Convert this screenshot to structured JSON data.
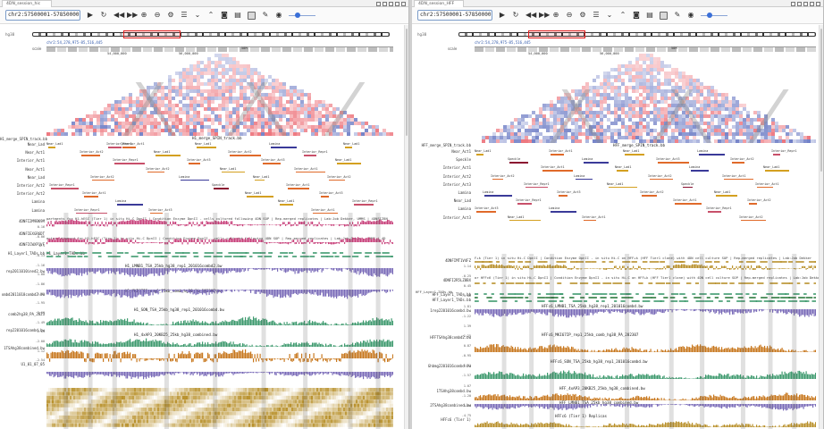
{
  "colors": {
    "hic_red": "#e8505a",
    "hic_blue": "#4c5fb8",
    "lamina": "#3a3a99",
    "speckle": "#8b1030",
    "near_lad": "#d4a020",
    "interior_act": "#e06a2a",
    "interior_repr": "#c8506a",
    "wig_purple": "#7a6bb8",
    "wig_green": "#3e9a6e",
    "wig_orange": "#c8781e",
    "wig_gold": "#b8902a",
    "wig_magenta": "#c8407a"
  },
  "left": {
    "tab_title": "4DN_session_hic",
    "locus": "chr2:57500001-57850000,chr2:",
    "chrom_label": "hg38",
    "coord_line": "chr2:54,278,975-85,516,445",
    "scale_label": "scale",
    "ruler_ticks": [
      "54,000,000",
      "56,000,000",
      "58M"
    ],
    "spin_title": "H1_merge_SPIN_track.bb",
    "spin_header_label": "H1_merge_SPIN_track.bb",
    "spin_rows": [
      {
        "label": "Near_Lad",
        "feat": [
          "Near_Lad1",
          "Interior_Act1",
          "Near_Lad1",
          "Lamina",
          "Near_Lad1",
          "Interior_Repr1"
        ]
      },
      {
        "label": "Near_Act1",
        "feat": [
          "Interior_Act2",
          "Near_Lad1",
          "Interior_Act2",
          "Interior_Repr1"
        ]
      },
      {
        "label": "Interior_Act1",
        "feat": [
          "Interior_Repr1",
          "Interior_Act3",
          "Interior_Act3",
          "Near_Lad1"
        ]
      },
      {
        "label": "Near_Act1",
        "feat": [
          "Interior_Act2",
          "Near_Lad1",
          "Interior_Act1"
        ]
      },
      {
        "label": "Near_Lad",
        "feat": [
          "Lamina",
          "Near_Lad1",
          "Interior_Act2",
          "Interior_Act2"
        ]
      },
      {
        "label": "Interior_Act2",
        "feat": [
          "Speckle",
          "Interior_Act1",
          "Interior_Repr1"
        ]
      },
      {
        "label": "Interior_Act2",
        "feat": [
          "Near_Lad1",
          "Interior_Act3",
          "Interior_Act1"
        ]
      },
      {
        "label": "Lamina",
        "feat": [
          "Near_Lad1",
          "Interior_Repr1",
          "Lamina"
        ]
      },
      {
        "label": "Lamina",
        "feat": [
          "Interior_Act1",
          "Interior_Repr1",
          "Interior_Act3"
        ]
      }
    ],
    "track_titles": [
      "partments for H1-hESC (Tier 1) in situ Hi-C DpnII | Condition Enzyme DpnII - cells cultured following 4DN SOP | Rep-merged replicates | Lab:Job Dekker, UMMS | 4DNFIZ8N",
      "ecture diamond for H1-hESC (Tier 1) in situ Hi-C DpnII | Condition Enzyme DpnII - cells cultured following 4DN SOP | Rep-merged replicates | Lab:Job Dekker, UMMS | 4D",
      "H1_Layer1_TADs.bb",
      "H1_LMNB1_TSA_25kb_hg38_rep1_201016combd2.bw",
      "H1_MKI67IP_rep1_25kb_comb_hg38_PA_282307.bw",
      "H1_SON_TSA_25kb_hg38_rep1_201016combd.bw",
      "H1_4xAP3_20KB25_25kb_hg38_combined.bw"
    ],
    "side_labels": [
      "4DNFI2M9BK9M",
      "4DNFIEXGR6DT",
      "4DNFICWXP1VF",
      "H1_Layer1_TADs.bb",
      "rep2011010ined2.bw",
      "ombd2011018combd2.bw",
      "comb2hg38_PA_2823",
      "rep2201016combd.bw",
      "1TSAhg38combined.bw",
      "U1_01_07_05"
    ],
    "scales": [
      "0.16",
      "-0.06",
      "0.1",
      "-0.13",
      "-1.16",
      "1.80",
      "-1.86",
      "1.89",
      "-1.95",
      "2.00",
      "-1.49",
      "2.65",
      "-2.00",
      "1.12",
      "-2.54"
    ]
  },
  "right": {
    "tab_title": "4DN_session_HFF",
    "locus": "chr2:57500001-57850000,chr2:",
    "chrom_label": "hg38",
    "coord_line": "chr2:54,278,975-85,516,445",
    "scale_label": "scale",
    "ruler_ticks": [
      "54,000,000",
      "56,000,000",
      "58M"
    ],
    "spin_title": "HFF_merge_SPIN_track.bb",
    "spin_header_label": "HFF_merge_SPIN_track.bb",
    "spin_rows": [
      {
        "label": "Near_Act1",
        "feat": [
          "Near_Lad1",
          "Interior_Act1",
          "Near_Lad1",
          "Lamina",
          "Interior_Repr1"
        ]
      },
      {
        "label": "Speckle",
        "feat": [
          "Speckle",
          "Lamina",
          "Interior_Act3",
          "Interior_Act2"
        ]
      },
      {
        "label": "Interior_Act1",
        "feat": [
          "Interior_Act1",
          "Near_Lad1",
          "Lamina",
          "Near_Lad1"
        ]
      },
      {
        "label": "Interior_Act2",
        "feat": [
          "Lamina",
          "Interior_Act2",
          "Interior_Act1",
          "Interior_Act2"
        ]
      },
      {
        "label": "Interior_Act3",
        "feat": [
          "Near_Lad1",
          "Speckle",
          "Interior_Act1",
          "Interior_Repr1"
        ]
      },
      {
        "label": "Lamina",
        "feat": [
          "Interior_Act2",
          "Near_Lad1",
          "Lamina",
          "Interior_Act3"
        ]
      },
      {
        "label": "Near_Lad",
        "feat": [
          "Interior_Act1",
          "Interior_Act2",
          "Interior_Repr1"
        ]
      },
      {
        "label": "Lamina",
        "feat": [
          "Interior_Repr1",
          "Interior_Act3",
          "Lamina"
        ]
      },
      {
        "label": "Interior_Act3",
        "feat": [
          "Interior_Act2",
          "Near_Lad1",
          "Interior_Act1"
        ]
      }
    ],
    "track_titles": [
      "F+k (Tier 1) in situ Hi-C DpnII | Condition Enzyme DpnII - in situ Hi-C on HFF+k (HFF Tier1 clone) with 4DN cell culture SOP | Rep-merged replicates | Lab:Job Dekker",
      "or HFFc6 (Tier 1) in situ Hi-C DpnII | Condition Enzyme DpnII - in situ Hi-C on HFF+k (HFF Tier1 clone) with 4DN cell culture SOP | Rep-merged replicates | Lab:Job Dekker",
      "HFF_Layer1_TADs.bb",
      "HFFc6_LMNB1_TSA_25kb_hg38_rep1_201016combd.bw",
      "HFFc6_MKI67IP_rep1_25kb_comb_hg38_PA_282307",
      "HFFc6_SON_TSA_25kb_hg38_rep1_201016combd.bw",
      "HFF_4xAP3_20KB25_25kb_hg38_combined.bw",
      "HFF_LMNB1_TSA_25kb_hg38_combined.bw",
      "HFFc6 (Tier 1) Replicas"
    ],
    "side_labels": [
      "4DNFIMT1V4FZ",
      "4DNFI2R5LZ8BX",
      "HFF_Layer1_TADs.bb",
      "HFF_Layer1_TADs.bb",
      "1rep2201016combd.bw",
      "HFFTSAhg38combd2.bw",
      "Ghbmg2201016combd.bw",
      "1TSAhg38combd.bw",
      "2TSAhg38combined.bw",
      "HFFc6 (Tier 1)"
    ],
    "scales": [
      "1.14",
      "-0.25",
      "0.45",
      "-1.86",
      "1.81",
      "-1.22",
      "1.39",
      "-1.25",
      "0.87",
      "-0.95",
      "1.31",
      "-1.57",
      "1.07",
      "-1.20",
      "1.84",
      "-4.75"
    ]
  }
}
